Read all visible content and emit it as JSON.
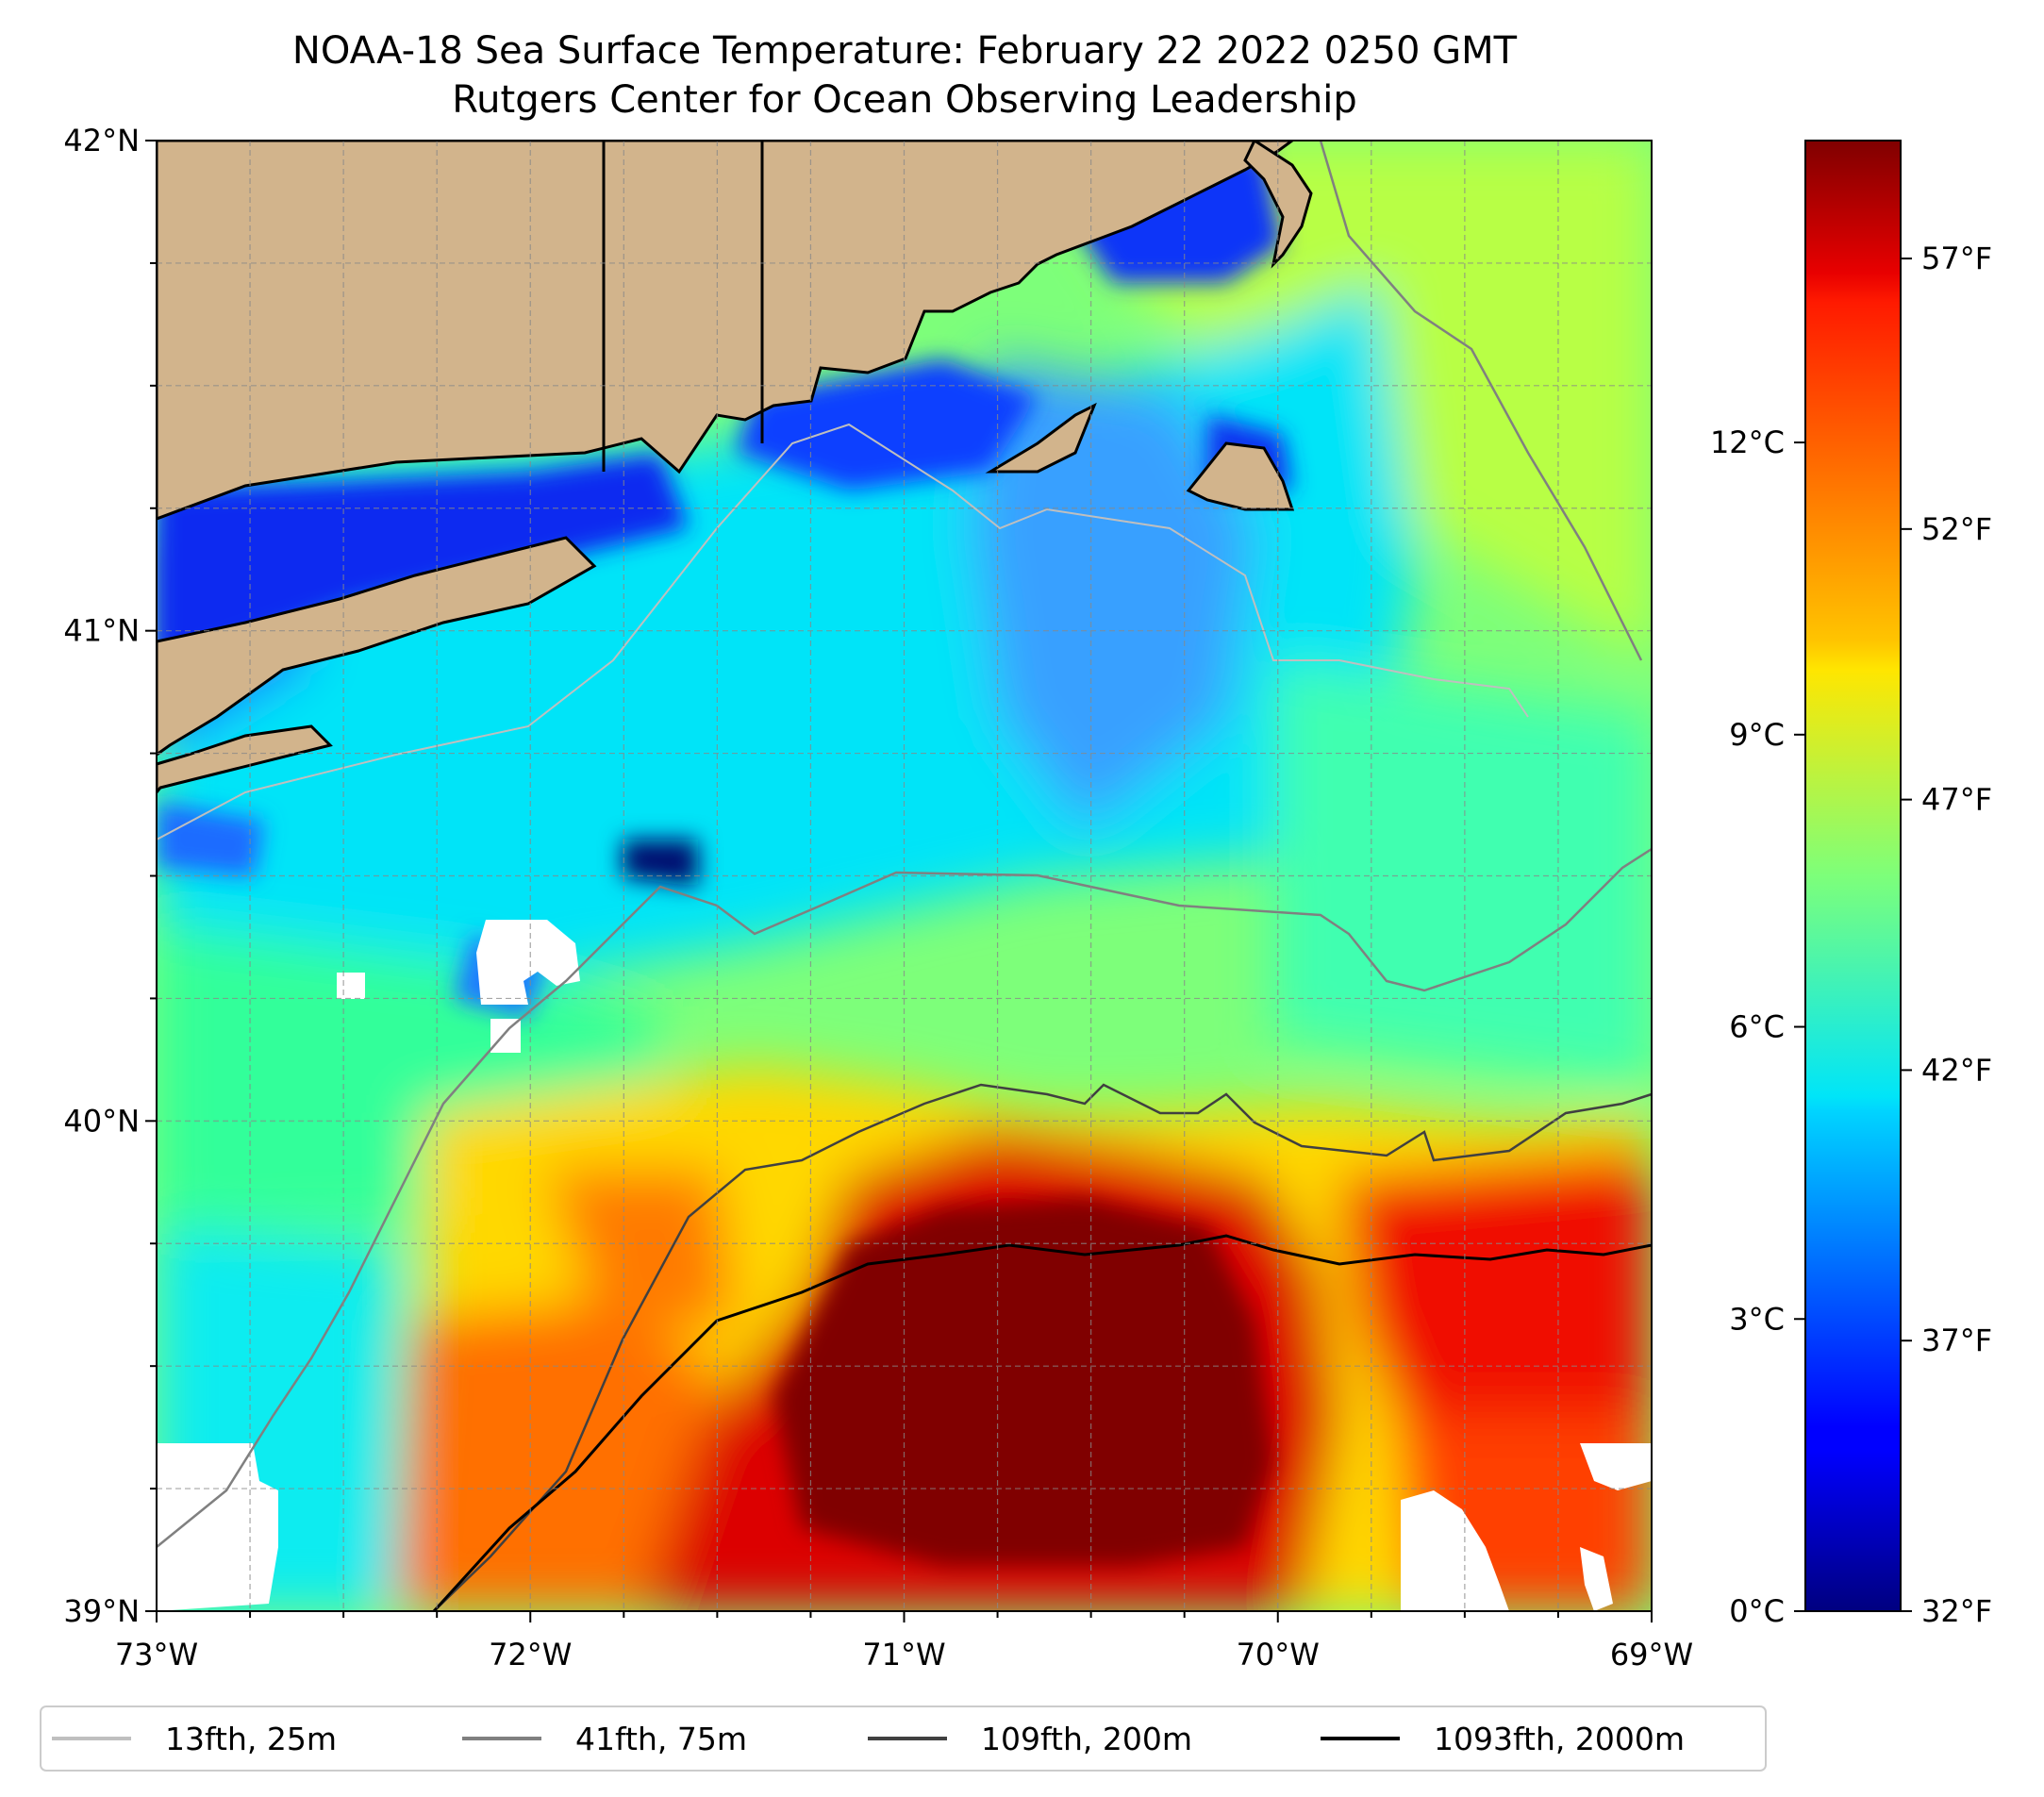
{
  "title": {
    "line1": "NOAA-18 Sea Surface Temperature: February 22 2022 0250 GMT",
    "line2": "Rutgers Center for Ocean Observing Leadership"
  },
  "map": {
    "lon_range": [
      -73,
      -69
    ],
    "lat_range": [
      39,
      42
    ],
    "lat_ticks": [
      {
        "value": 42,
        "label": "42°N"
      },
      {
        "value": 41,
        "label": "41°N"
      },
      {
        "value": 40,
        "label": "40°N"
      },
      {
        "value": 39,
        "label": "39°N"
      }
    ],
    "lon_ticks": [
      {
        "value": -73,
        "label": "73°W"
      },
      {
        "value": -72,
        "label": "72°W"
      },
      {
        "value": -71,
        "label": "71°W"
      },
      {
        "value": -70,
        "label": "70°W"
      },
      {
        "value": -69,
        "label": "69°W"
      }
    ],
    "gridlines": true,
    "land_color": "#d2b48c",
    "no_data_color": "#ffffff"
  },
  "colorbar": {
    "colormap": "jet",
    "range_c": [
      0,
      15.1
    ],
    "celsius_ticks": [
      {
        "value": 0,
        "label": "0°C"
      },
      {
        "value": 3,
        "label": "3°C"
      },
      {
        "value": 6,
        "label": "6°C"
      },
      {
        "value": 9,
        "label": "9°C"
      },
      {
        "value": 12,
        "label": "12°C"
      }
    ],
    "fahrenheit_ticks": [
      {
        "value": 32,
        "label": "32°F"
      },
      {
        "value": 37,
        "label": "37°F"
      },
      {
        "value": 42,
        "label": "42°F"
      },
      {
        "value": 47,
        "label": "47°F"
      },
      {
        "value": 52,
        "label": "52°F"
      },
      {
        "value": 57,
        "label": "57°F"
      }
    ]
  },
  "legend": {
    "placement": "bottom",
    "items": [
      {
        "label": "13fth, 25m",
        "color": "#bfbfbf"
      },
      {
        "label": "41fth, 75m",
        "color": "#808080"
      },
      {
        "label": "109fth, 200m",
        "color": "#404040"
      },
      {
        "label": "1093fth, 2000m",
        "color": "#000000"
      }
    ]
  }
}
